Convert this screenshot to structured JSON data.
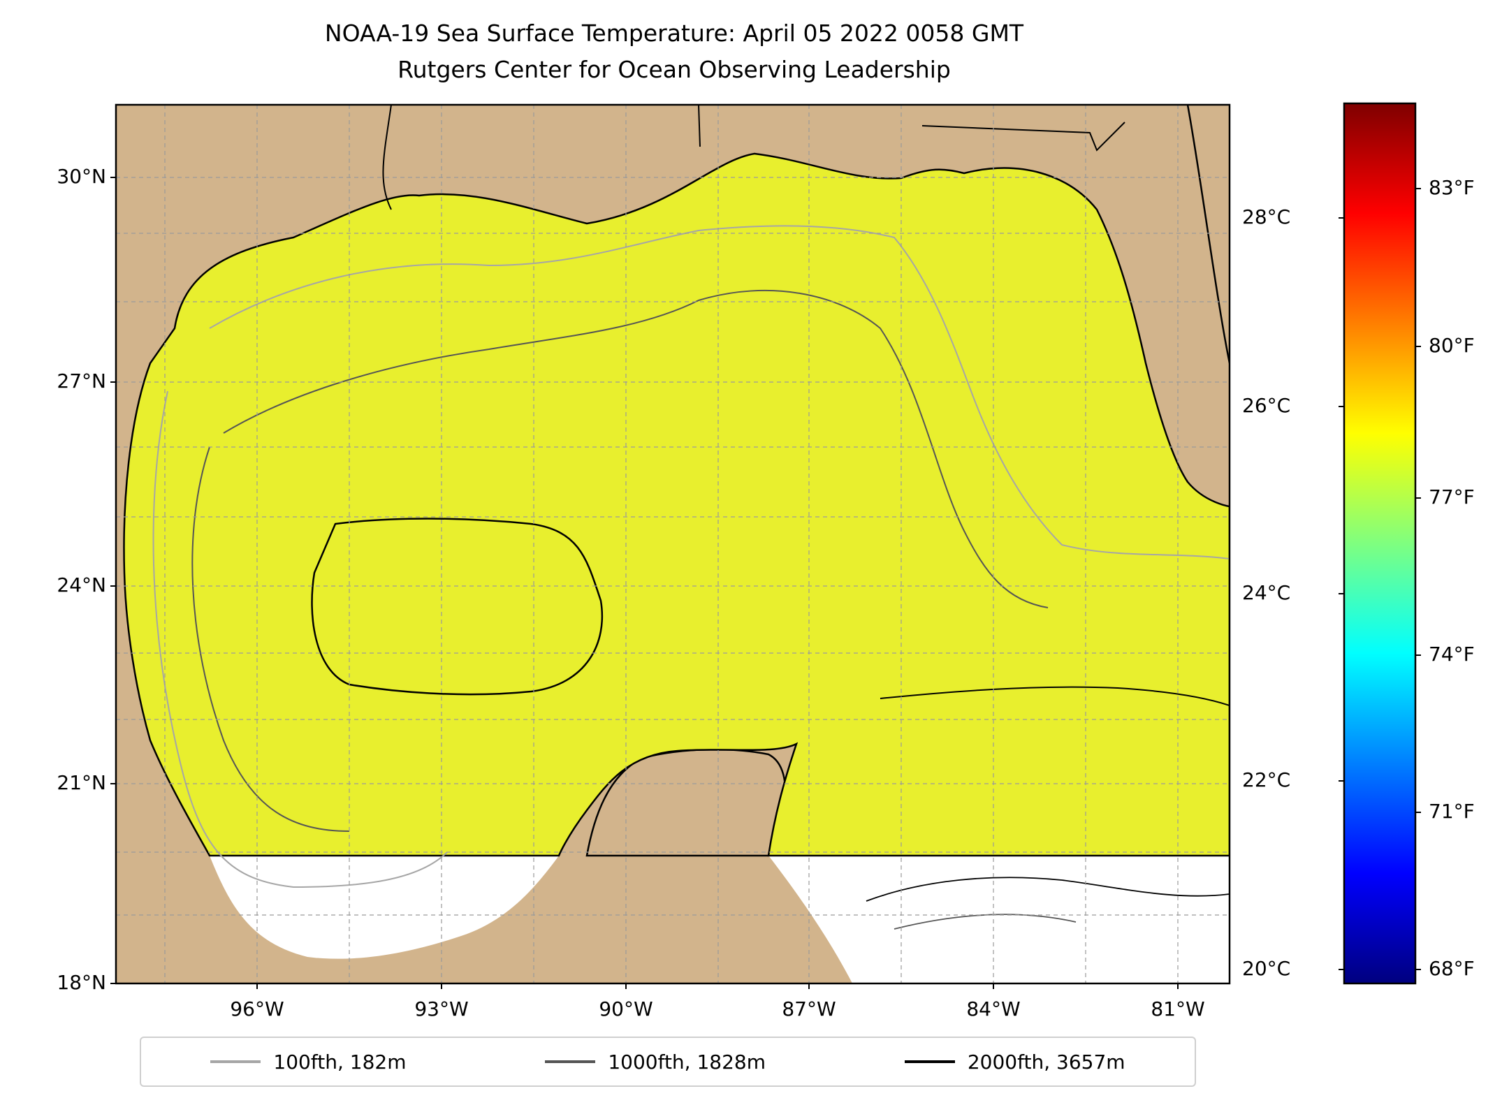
{
  "title": {
    "line1": "NOAA-19 Sea Surface Temperature: April 05 2022 0058 GMT",
    "line2": "Rutgers Center for Ocean Observing Leadership"
  },
  "map": {
    "lat_ticks": [
      "30°N",
      "27°N",
      "24°N",
      "21°N",
      "18°N"
    ],
    "lon_ticks": [
      "96°W",
      "93°W",
      "90°W",
      "87°W",
      "84°W",
      "81°W"
    ],
    "land_color": "#d2b48c",
    "cloud_color": "#ffffff",
    "grid": true
  },
  "colorbar": {
    "palette": "jet",
    "colors": [
      "#00007f",
      "#0000ff",
      "#007fff",
      "#00ffff",
      "#7fff7f",
      "#ffff00",
      "#ff7f00",
      "#ff0000",
      "#7f0000"
    ],
    "celsius_ticks": [
      "28°C",
      "26°C",
      "24°C",
      "22°C",
      "20°C"
    ],
    "fahrenheit_ticks": [
      "83°F",
      "80°F",
      "77°F",
      "74°F",
      "71°F",
      "68°F"
    ]
  },
  "legend": {
    "items": [
      {
        "label": "100fth, 182m",
        "color": "#a6a6a6"
      },
      {
        "label": "1000fth, 1828m",
        "color": "#555555"
      },
      {
        "label": "2000fth, 3657m",
        "color": "#000000"
      }
    ]
  }
}
